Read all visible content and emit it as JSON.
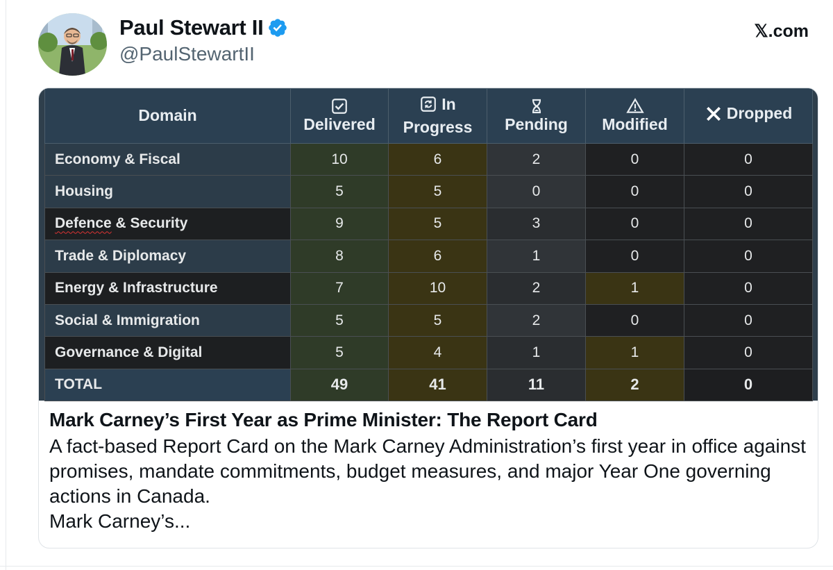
{
  "author": {
    "name": "Paul Stewart II",
    "handle": "@PaulStewartII",
    "verified": true,
    "avatar_icon": "avatar-photo"
  },
  "site": "𝕏.com",
  "table": {
    "headers": [
      {
        "label": "Domain",
        "icon": ""
      },
      {
        "label": "Delivered",
        "icon": "checkbox-icon"
      },
      {
        "label_line1": "In",
        "label_line2": "Progress",
        "icon": "refresh-icon"
      },
      {
        "label": "Pending",
        "icon": "hourglass-icon"
      },
      {
        "label": "Modified",
        "icon": "warning-icon"
      },
      {
        "label": "Dropped",
        "icon": "x-icon"
      }
    ],
    "rows": [
      {
        "domain": "Economy & Fiscal",
        "delivered": "10",
        "in_progress": "6",
        "pending": "2",
        "modified": "0",
        "dropped": "0"
      },
      {
        "domain": "Housing",
        "delivered": "5",
        "in_progress": "5",
        "pending": "0",
        "modified": "0",
        "dropped": "0"
      },
      {
        "domain": "Defence & Security",
        "delivered": "9",
        "in_progress": "5",
        "pending": "3",
        "modified": "0",
        "dropped": "0"
      },
      {
        "domain": "Trade & Diplomacy",
        "delivered": "8",
        "in_progress": "6",
        "pending": "1",
        "modified": "0",
        "dropped": "0"
      },
      {
        "domain": "Energy & Infrastructure",
        "delivered": "7",
        "in_progress": "10",
        "pending": "2",
        "modified": "1",
        "dropped": "0"
      },
      {
        "domain": "Social & Immigration",
        "delivered": "5",
        "in_progress": "5",
        "pending": "2",
        "modified": "0",
        "dropped": "0"
      },
      {
        "domain": "Governance & Digital",
        "delivered": "5",
        "in_progress": "4",
        "pending": "1",
        "modified": "1",
        "dropped": "0"
      }
    ],
    "total": {
      "domain": "TOTAL",
      "delivered": "49",
      "in_progress": "41",
      "pending": "11",
      "modified": "2",
      "dropped": "0"
    }
  },
  "card": {
    "title": "Mark Carney’s First Year as Prime Minister: The Report Card",
    "description": "A fact-based Report Card on the Mark Carney Administration’s first year in office against promises, mandate commitments, budget measures, and major Year One governing actions in Canada.",
    "more": "Mark Carney’s..."
  },
  "colors": {
    "header_bg": "#2b4052",
    "delivered_bg": "#2f3b28",
    "in_progress_bg": "#3a3414",
    "verified_blue": "#1d9bf0"
  }
}
